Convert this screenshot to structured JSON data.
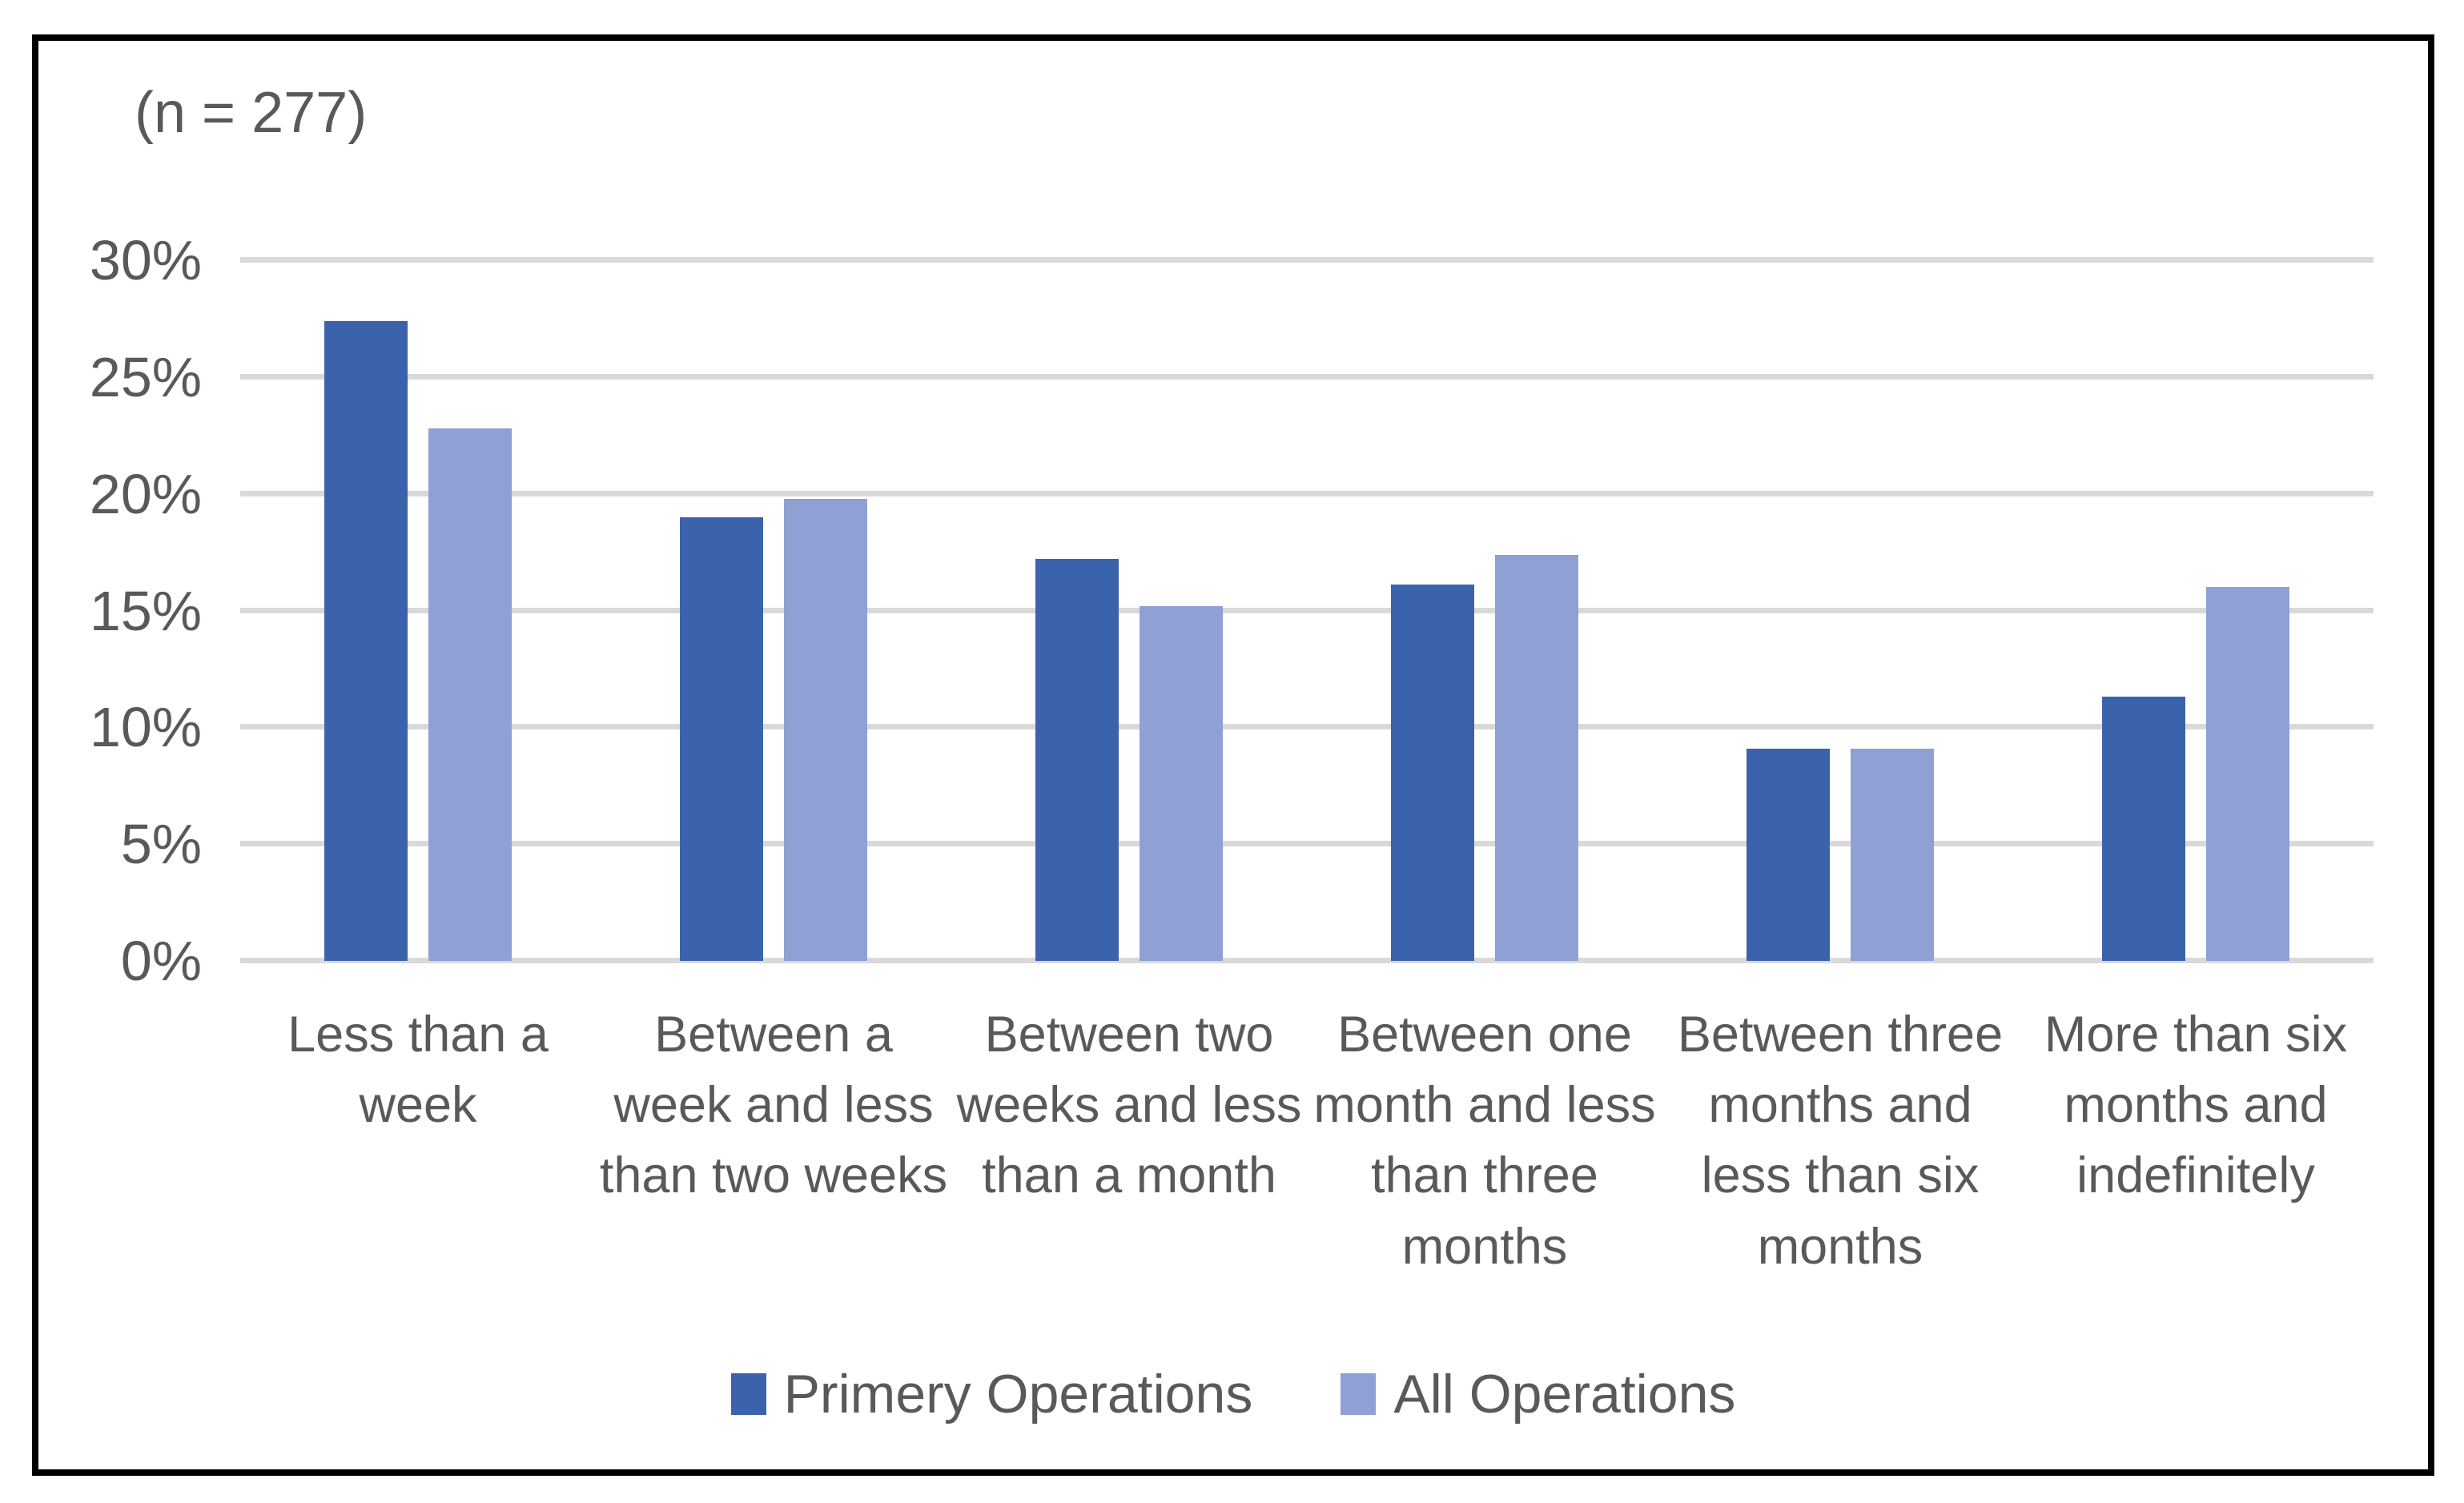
{
  "chart_data": {
    "type": "bar",
    "title": "(n = 277)",
    "categories": [
      "Less than a week",
      "Between a week and less than two weeks",
      "Between two weeks and less than a month",
      "Between one month and less than three months",
      "Between three months and less than six months",
      "More than six months and indefinitely"
    ],
    "series": [
      {
        "name": "Primery Operations",
        "color": "#3B63AC",
        "values": [
          27.4,
          19.0,
          17.2,
          16.1,
          9.1,
          11.3
        ]
      },
      {
        "name": "All Operations",
        "color": "#8EA0D4",
        "values": [
          22.8,
          19.8,
          15.2,
          17.4,
          9.1,
          16.0
        ]
      }
    ],
    "ylim": [
      0,
      30
    ],
    "ytick_step": 5,
    "ytick_labels": [
      "0%",
      "5%",
      "10%",
      "15%",
      "20%",
      "25%",
      "30%"
    ],
    "grid": true,
    "legend_position": "bottom",
    "colors": {
      "grid": "#D9D9D9",
      "text": "#595959",
      "frame_border": "#000000",
      "background": "#FFFFFF"
    }
  }
}
